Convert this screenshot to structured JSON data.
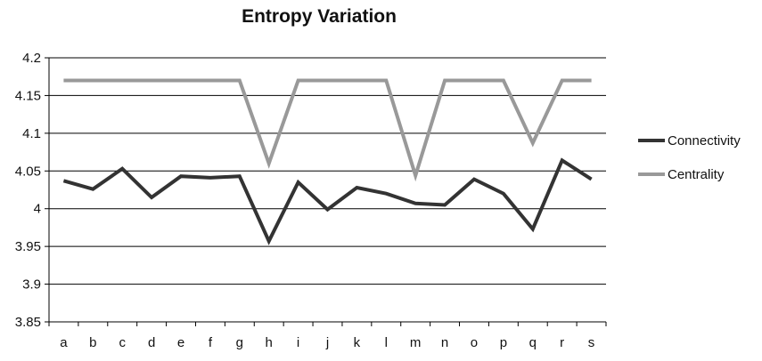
{
  "chart_data": {
    "type": "line",
    "title": "Entropy Variation",
    "xlabel": "",
    "ylabel": "",
    "categories": [
      "a",
      "b",
      "c",
      "d",
      "e",
      "f",
      "g",
      "h",
      "i",
      "j",
      "k",
      "l",
      "m",
      "n",
      "o",
      "p",
      "q",
      "r",
      "s"
    ],
    "ylim": [
      3.85,
      4.2
    ],
    "yticks": [
      3.85,
      3.9,
      3.95,
      4,
      4.05,
      4.1,
      4.15,
      4.2
    ],
    "ytick_labels": [
      "3.85",
      "3.9",
      "3.95",
      "4",
      "4.05",
      "4.1",
      "4.15",
      "4.2"
    ],
    "grid": true,
    "legend_position": "right",
    "series": [
      {
        "name": "Connectivity",
        "color": "#333333",
        "values": [
          4.037,
          4.026,
          4.053,
          4.015,
          4.043,
          4.041,
          4.043,
          3.957,
          4.035,
          3.999,
          4.028,
          4.02,
          4.007,
          4.005,
          4.039,
          4.02,
          3.973,
          4.064,
          4.039
        ]
      },
      {
        "name": "Centrality",
        "color": "#999999",
        "values": [
          4.17,
          4.17,
          4.17,
          4.17,
          4.17,
          4.17,
          4.17,
          4.06,
          4.17,
          4.17,
          4.17,
          4.17,
          4.044,
          4.17,
          4.17,
          4.17,
          4.087,
          4.17,
          4.17
        ]
      }
    ]
  }
}
